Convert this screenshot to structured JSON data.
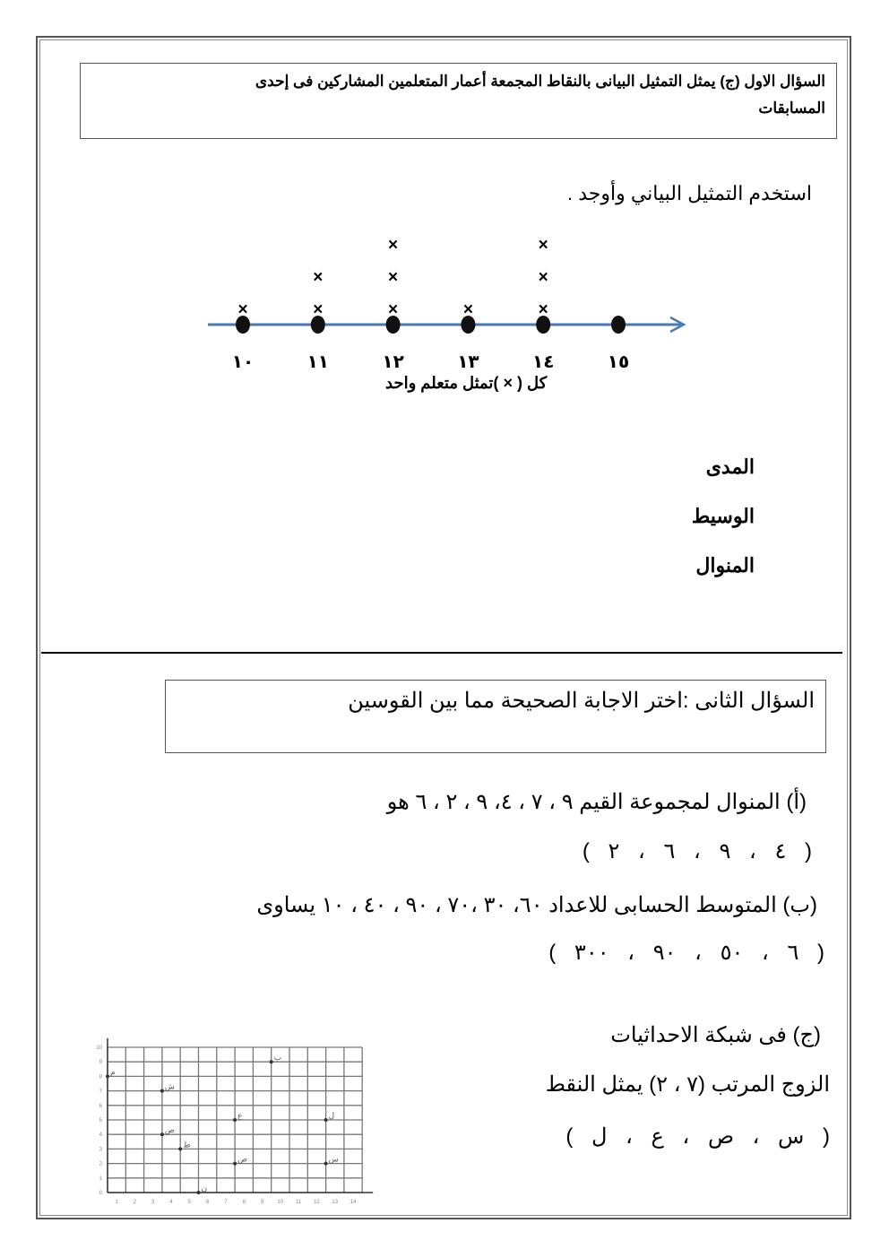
{
  "q1": {
    "title": "السؤال الاول (ج) يمثل التمثيل البيانى بالنقاط المجمعة أعمار المتعلمين المشاركين فى إحدى المسابقات",
    "title_line1": "السؤال الاول (ج) يمثل التمثيل البيانى بالنقاط المجمعة أعمار المتعلمين المشاركين فى إحدى",
    "title_line2": "المسابقات",
    "instruction": "استخدم التمثيل البياني وأوجد .",
    "items": [
      "المدى",
      "الوسيط",
      "المنوال"
    ]
  },
  "chart_data": [
    {
      "type": "scatter",
      "subtype": "dot-plot",
      "categories": [
        "١٠",
        "١١",
        "١٢",
        "١٣",
        "١٤",
        "١٥"
      ],
      "x": [
        10,
        11,
        12,
        13,
        14,
        15
      ],
      "values": [
        1,
        2,
        3,
        1,
        3,
        0
      ],
      "marker": "×",
      "xlabel": "كل ( × )تمثل متعلم واحد",
      "axis_color": "#4a7ab5"
    },
    {
      "type": "scatter",
      "subtype": "coordinate-grid",
      "xlim": [
        0,
        14
      ],
      "ylim": [
        0,
        10
      ],
      "grid": true,
      "points": [
        {
          "label": "م",
          "x": 0,
          "y": 8
        },
        {
          "label": "ش",
          "x": 3,
          "y": 7
        },
        {
          "label": "ص",
          "x": 3,
          "y": 4
        },
        {
          "label": "ط",
          "x": 4,
          "y": 3
        },
        {
          "label": "ن",
          "x": 5,
          "y": 0
        },
        {
          "label": "ع",
          "x": 7,
          "y": 5
        },
        {
          "label": "ص",
          "x": 7,
          "y": 2
        },
        {
          "label": "ب",
          "x": 9,
          "y": 9
        },
        {
          "label": "ل",
          "x": 12,
          "y": 5
        },
        {
          "label": "س",
          "x": 12,
          "y": 2
        }
      ]
    }
  ],
  "q2": {
    "title": "السؤال الثانى :اختر الاجابة الصحيحة مما بين القوسين",
    "a_question": "(أ) المنوال لمجموعة القيم ٩ ، ٧ ، ٤، ٩ ، ٢ ، ٦    هو",
    "a_options": "(  ٤   ،   ٩   ،  ٦  ، ٢  )",
    "b_question": "(ب) المتوسط الحسابى للاعداد  ٦٠، ٣٠ ،٧٠ ، ٩٠ ، ٤٠ ، ١٠ يساوى",
    "b_options": "(  ٦   ،   ٥٠   ،  ٩٠   ،  ٣٠٠  )",
    "c_question": "(ج) فى شبكة الاحداثيات",
    "c_line2": "الزوج المرتب (٧ ، ٢) يمثل النقط",
    "c_options": "(  س   ،  ص  ،  ع  ،  ل  )"
  }
}
